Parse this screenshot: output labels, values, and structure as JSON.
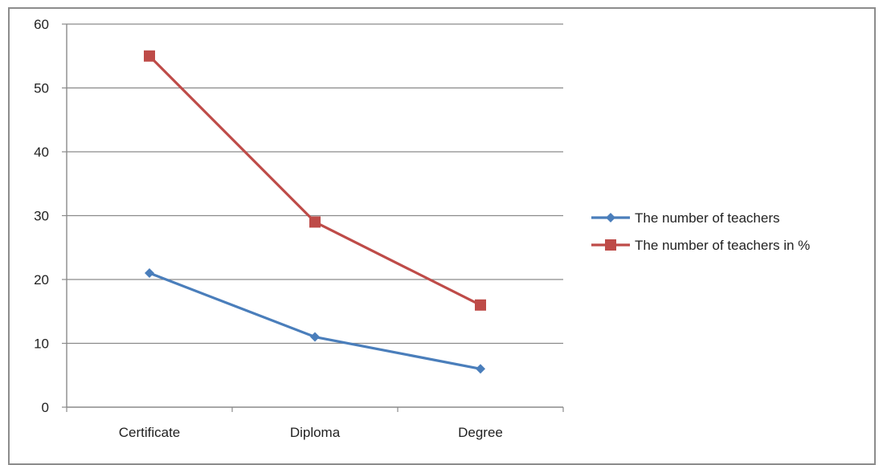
{
  "chart_data": {
    "type": "line",
    "categories": [
      "Certificate",
      "Diploma",
      "Degree"
    ],
    "series": [
      {
        "name": "The number of teachers",
        "values": [
          21,
          11,
          6
        ],
        "color": "#4a7ebb",
        "marker": "diamond"
      },
      {
        "name": "The number of teachers in %",
        "values": [
          55,
          29,
          16
        ],
        "color": "#be4b48",
        "marker": "square"
      }
    ],
    "ylim": [
      0,
      60
    ],
    "yticks": [
      0,
      10,
      20,
      30,
      40,
      50,
      60
    ],
    "grid": true,
    "legend": "right",
    "title": "",
    "xlabel": "",
    "ylabel": ""
  }
}
